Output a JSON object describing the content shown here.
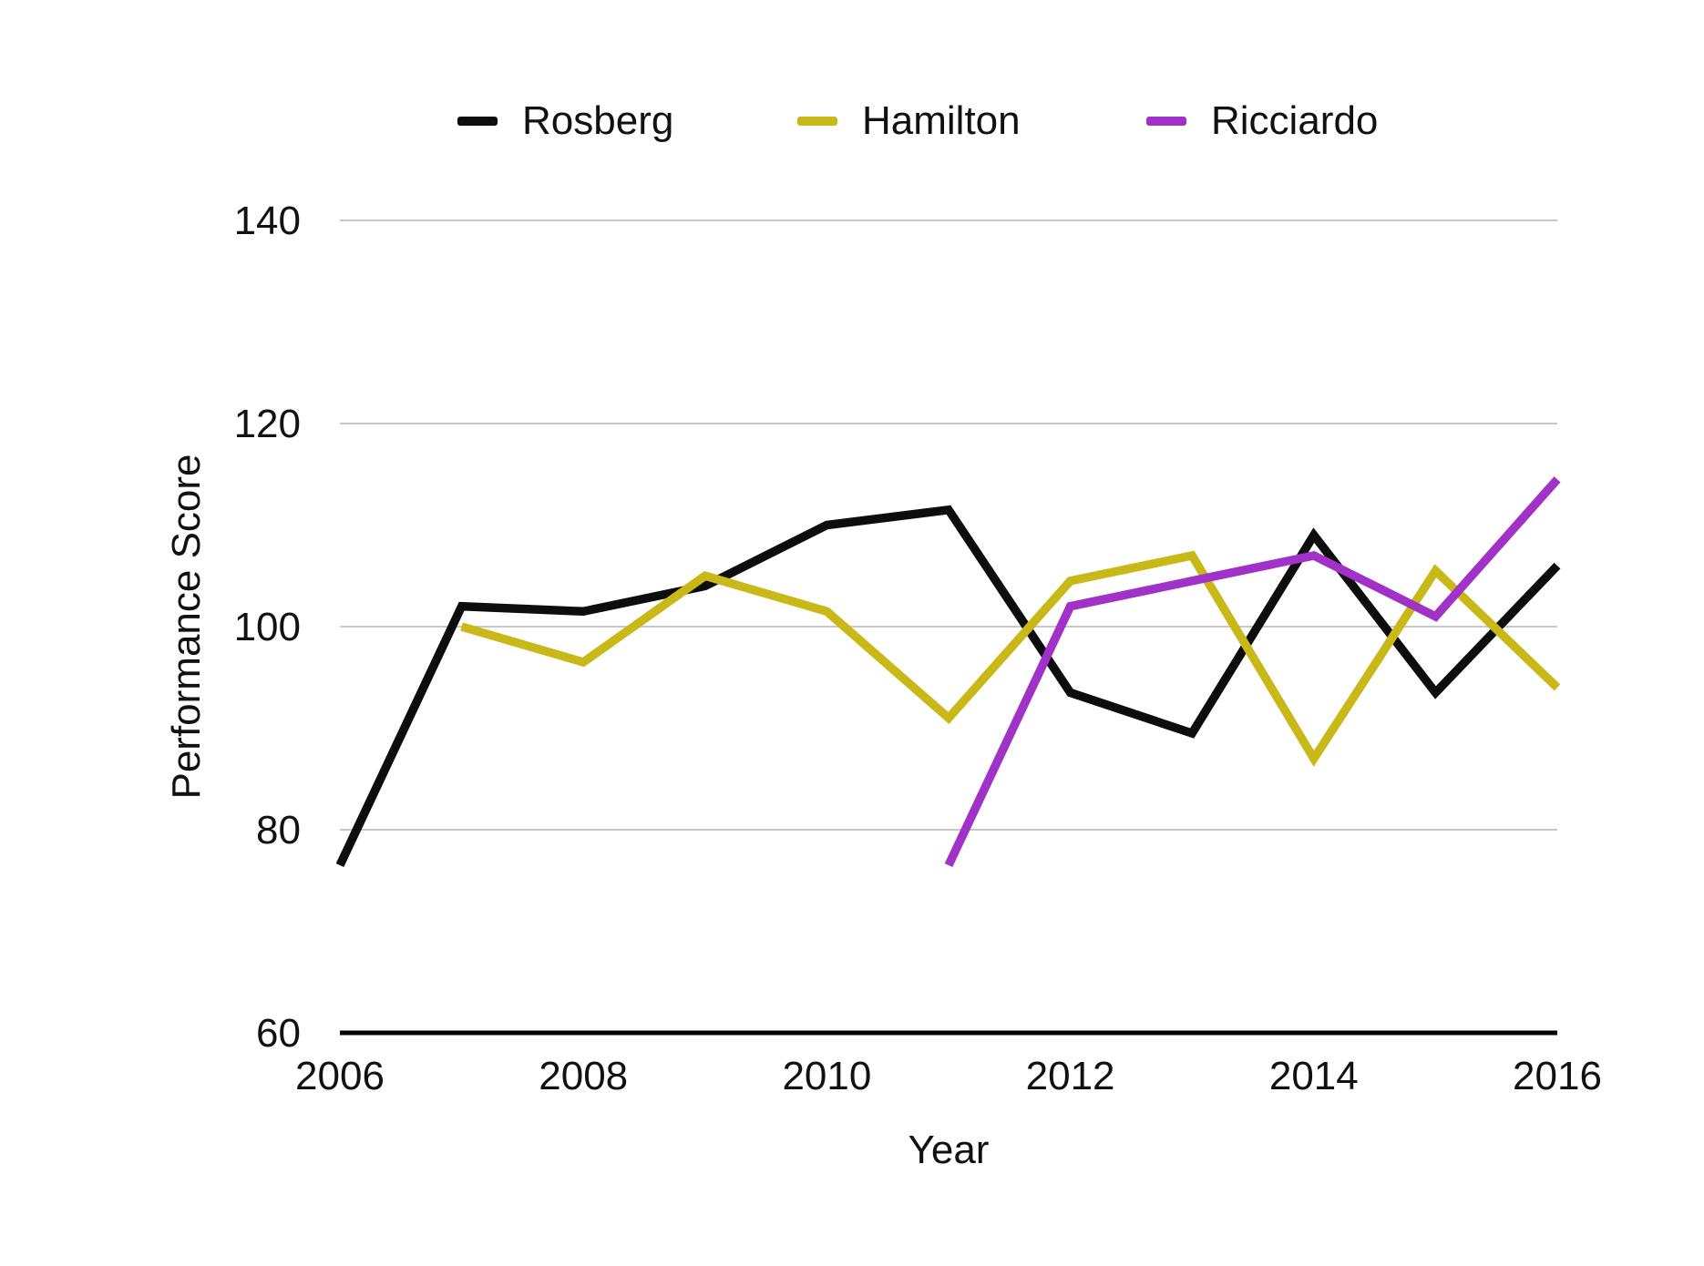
{
  "chart_data": {
    "type": "line",
    "title": "",
    "xlabel": "Year",
    "ylabel": "Performance Score",
    "xlim": [
      2006,
      2016
    ],
    "ylim": [
      60,
      140
    ],
    "x_ticks": [
      2006,
      2008,
      2010,
      2012,
      2014,
      2016
    ],
    "y_ticks": [
      140,
      120,
      100,
      80,
      60
    ],
    "grid": "horizontal-only",
    "legend_position": "top",
    "gridline_color": "#c8c8c8",
    "axis_line_color": "#000000",
    "series": [
      {
        "name": "Rosberg",
        "color": "#0d0d0d",
        "points": [
          [
            2006,
            76.5
          ],
          [
            2007,
            102
          ],
          [
            2008,
            101.5
          ],
          [
            2009,
            104
          ],
          [
            2010,
            110
          ],
          [
            2011,
            111.5
          ],
          [
            2012,
            93.5
          ],
          [
            2013,
            89.5
          ],
          [
            2014,
            109
          ],
          [
            2015,
            93.5
          ],
          [
            2016,
            106
          ]
        ]
      },
      {
        "name": "Hamilton",
        "color": "#c9b918",
        "points": [
          [
            2007,
            100
          ],
          [
            2008,
            96.5
          ],
          [
            2009,
            105
          ],
          [
            2010,
            101.5
          ],
          [
            2011,
            91
          ],
          [
            2012,
            104.5
          ],
          [
            2013,
            107
          ],
          [
            2014,
            87
          ],
          [
            2015,
            105.5
          ],
          [
            2016,
            94
          ]
        ]
      },
      {
        "name": "Ricciardo",
        "color": "#a032c8",
        "points": [
          [
            2011,
            76.5
          ],
          [
            2012,
            102
          ],
          [
            2013,
            104.5
          ],
          [
            2014,
            107
          ],
          [
            2015,
            101
          ],
          [
            2016,
            114.5
          ]
        ]
      }
    ]
  }
}
